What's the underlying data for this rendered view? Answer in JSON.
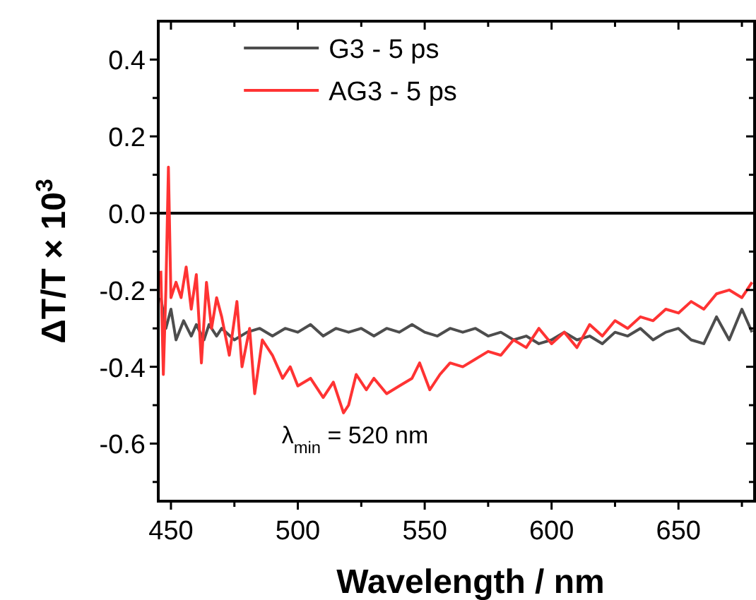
{
  "chart_data": {
    "type": "line",
    "xlabel": "Wavelength / nm",
    "ylabel": "ΔT/T × 10$^{3}$",
    "xlim": [
      445,
      680
    ],
    "ylim": [
      -0.75,
      0.5
    ],
    "xticks": [
      450,
      {
        "value": 475,
        "label": null
      },
      500,
      {
        "value": 525,
        "label": null
      },
      550,
      {
        "value": 575,
        "label": null
      },
      600,
      {
        "value": 625,
        "label": null
      },
      650,
      {
        "value": 675,
        "label": null
      }
    ],
    "yticks": [
      {
        "value": -0.7,
        "label": null
      },
      -0.6,
      {
        "value": -0.5,
        "label": null
      },
      -0.4,
      {
        "value": -0.3,
        "label": null
      },
      -0.2,
      {
        "value": -0.1,
        "label": null
      },
      "0.0",
      {
        "value": 0.1,
        "label": null
      },
      0.2,
      {
        "value": 0.3,
        "label": null
      },
      0.4
    ],
    "legend": "top",
    "grid": false,
    "marker": "none",
    "line_style": "solid",
    "ref_lines": [
      {
        "axis": "y",
        "value": 0,
        "color": "#000000"
      }
    ],
    "annotations": [
      "λ$_{min}$ = 520 nm"
    ],
    "series": [
      {
        "name": "G3 - 5 ps",
        "color": "#4d4d4d",
        "x": [
          446,
          448,
          450,
          452,
          455,
          458,
          460,
          463,
          465,
          468,
          470,
          475,
          480,
          485,
          490,
          495,
          500,
          505,
          510,
          515,
          520,
          525,
          530,
          535,
          540,
          545,
          550,
          555,
          560,
          565,
          570,
          575,
          580,
          585,
          590,
          595,
          600,
          605,
          610,
          615,
          620,
          625,
          630,
          635,
          640,
          645,
          650,
          655,
          660,
          665,
          670,
          675,
          679
        ],
        "values": [
          -0.22,
          -0.3,
          -0.25,
          -0.33,
          -0.28,
          -0.32,
          -0.29,
          -0.33,
          -0.29,
          -0.32,
          -0.3,
          -0.33,
          -0.31,
          -0.3,
          -0.32,
          -0.3,
          -0.31,
          -0.29,
          -0.32,
          -0.3,
          -0.31,
          -0.3,
          -0.32,
          -0.3,
          -0.31,
          -0.29,
          -0.31,
          -0.32,
          -0.3,
          -0.31,
          -0.3,
          -0.32,
          -0.31,
          -0.33,
          -0.32,
          -0.34,
          -0.33,
          -0.31,
          -0.33,
          -0.32,
          -0.34,
          -0.31,
          -0.32,
          -0.3,
          -0.33,
          -0.31,
          -0.3,
          -0.33,
          -0.34,
          -0.27,
          -0.33,
          -0.25,
          -0.31
        ]
      },
      {
        "name": "AG3 - 5 ps",
        "color": "#ff3333",
        "x": [
          446,
          447,
          448,
          449,
          450,
          452,
          454,
          456,
          458,
          460,
          462,
          464,
          466,
          468,
          470,
          473,
          476,
          478,
          481,
          483,
          486,
          490,
          494,
          497,
          500,
          505,
          510,
          514,
          518,
          520,
          523,
          527,
          530,
          535,
          540,
          545,
          548,
          552,
          556,
          560,
          565,
          570,
          575,
          580,
          585,
          590,
          595,
          600,
          605,
          610,
          615,
          620,
          625,
          630,
          635,
          640,
          645,
          650,
          655,
          660,
          665,
          670,
          675,
          679
        ],
        "values": [
          -0.15,
          -0.42,
          -0.2,
          0.12,
          -0.22,
          -0.18,
          -0.22,
          -0.14,
          -0.25,
          -0.16,
          -0.39,
          -0.18,
          -0.3,
          -0.22,
          -0.27,
          -0.37,
          -0.23,
          -0.4,
          -0.3,
          -0.47,
          -0.33,
          -0.37,
          -0.43,
          -0.4,
          -0.45,
          -0.43,
          -0.48,
          -0.44,
          -0.52,
          -0.5,
          -0.42,
          -0.46,
          -0.43,
          -0.47,
          -0.45,
          -0.43,
          -0.39,
          -0.46,
          -0.42,
          -0.39,
          -0.4,
          -0.38,
          -0.36,
          -0.37,
          -0.33,
          -0.35,
          -0.3,
          -0.34,
          -0.31,
          -0.35,
          -0.29,
          -0.32,
          -0.28,
          -0.3,
          -0.27,
          -0.28,
          -0.25,
          -0.26,
          -0.23,
          -0.25,
          -0.21,
          -0.2,
          -0.22,
          -0.18
        ]
      }
    ]
  }
}
